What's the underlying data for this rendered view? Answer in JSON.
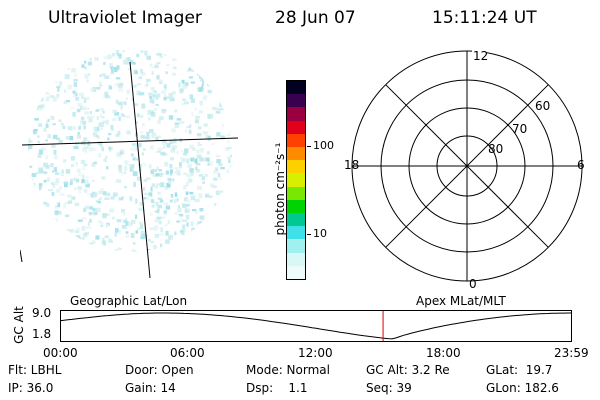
{
  "header": {
    "title": "Ultraviolet Imager",
    "date": "28 Jun 07",
    "time": "15:11:24 UT"
  },
  "colorbar": {
    "unit_label": "photon cm⁻²s⁻¹",
    "ticks": [
      "100",
      "10"
    ],
    "colors": [
      "#000020",
      "#3a0050",
      "#9a0040",
      "#e0001c",
      "#ff4000",
      "#ff8c00",
      "#ffd000",
      "#d8f000",
      "#78e800",
      "#00d400",
      "#00c890",
      "#40e0e8",
      "#a0f0f0",
      "#d8f8f8",
      "#eefbfb"
    ]
  },
  "polar": {
    "hour_labels": [
      "12",
      "18",
      "6",
      "0"
    ],
    "lat_labels": [
      "60",
      "70",
      "80"
    ]
  },
  "timeline": {
    "ylabel": "GC Alt",
    "y_max": "9.0",
    "y_min": "1.8",
    "left_label": "Geographic Lat/Lon",
    "right_label": "Apex MLat/MLT",
    "time_ticks": [
      "00:00",
      "06:00",
      "12:00",
      "18:00",
      "23:59"
    ],
    "current_marker_fraction": 0.631,
    "line_color": "#000000",
    "marker_color": "#e00000"
  },
  "status": {
    "filter": "Flt: LBHL",
    "door": "Door: Open",
    "mode": "Mode: Normal",
    "gc_alt": "GC Alt: 3.2 Re",
    "glat": "GLat:  19.7",
    "ip": "IP: 36.0",
    "gain": "Gain: 14",
    "dsp": "Dsp:    1.1",
    "seq": "Seq: 39",
    "glon": "GLon: 182.6"
  }
}
